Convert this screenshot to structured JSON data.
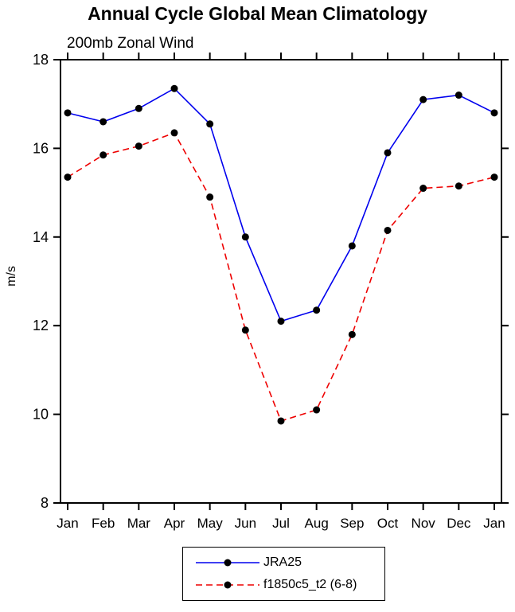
{
  "title": "Annual Cycle Global Mean Climatology",
  "subtitle": "200mb Zonal Wind",
  "chart_data": {
    "type": "line",
    "title": "Annual Cycle Global Mean Climatology",
    "subtitle": "200mb Zonal Wind",
    "xlabel": "",
    "ylabel": "m/s",
    "ylim": [
      8,
      18
    ],
    "yticks": [
      8,
      10,
      12,
      14,
      16,
      18
    ],
    "grid": "off",
    "legend_position": "bottom-center",
    "axis_color": "#000000",
    "marker_color": "#000000",
    "categories": [
      "Jan",
      "Feb",
      "Mar",
      "Apr",
      "May",
      "Jun",
      "Jul",
      "Aug",
      "Sep",
      "Oct",
      "Nov",
      "Dec",
      "Jan"
    ],
    "series": [
      {
        "name": "JRA25",
        "color": "#0000ee",
        "style": "solid",
        "dash": "none",
        "values": [
          16.8,
          16.6,
          16.9,
          17.35,
          16.55,
          14.0,
          12.1,
          12.35,
          13.8,
          15.9,
          17.1,
          17.2,
          16.8
        ]
      },
      {
        "name": "f1850c5_t2 (6-8)",
        "color": "#ee0000",
        "style": "dashed",
        "dash": "8,5",
        "values": [
          15.35,
          15.85,
          16.05,
          16.35,
          14.9,
          11.9,
          9.85,
          10.1,
          11.8,
          14.15,
          15.1,
          15.15,
          15.35
        ]
      }
    ]
  }
}
